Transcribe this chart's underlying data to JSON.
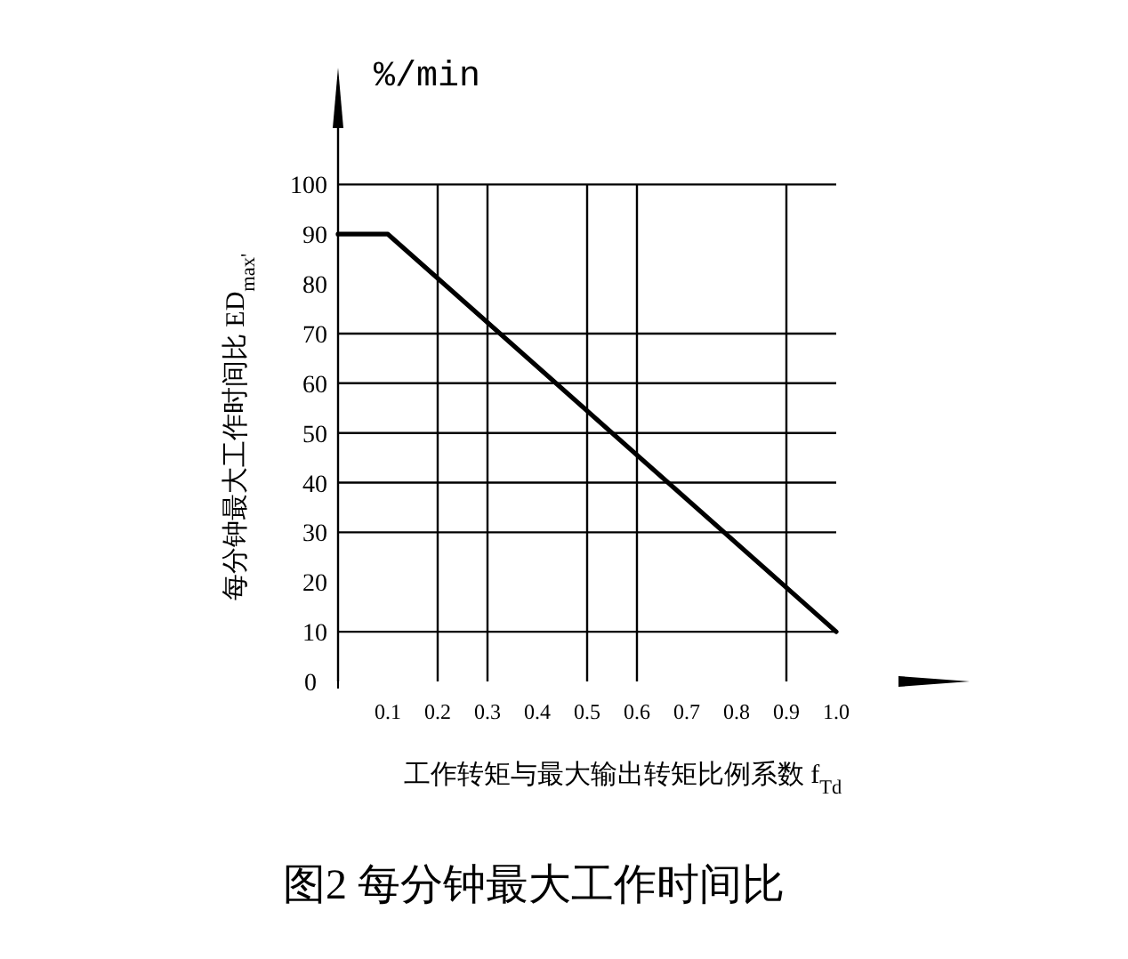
{
  "chart_data": {
    "type": "line",
    "title": "图2 每分钟最大工作时间比",
    "xlabel": "工作转矩与最大输出转矩比例系数 f$_{Td}$",
    "ylabel": "每分钟最大工作时间比 ED$_{max'}$",
    "annotations": [
      "%/min"
    ],
    "x": [
      0,
      0.1,
      1.0
    ],
    "values": [
      90,
      90,
      10
    ],
    "color": "#000000",
    "xlim": [
      0,
      1
    ],
    "ylim": [
      0,
      118.5
    ],
    "xticks": [
      0.1,
      0.2,
      0.3,
      0.4,
      0.5,
      0.6,
      0.7,
      0.8,
      0.9,
      {
        "value": 1,
        "label": "1.0"
      }
    ],
    "yticks": [
      0,
      10,
      20,
      30,
      40,
      50,
      60,
      70,
      80,
      90,
      100
    ],
    "ref_lines": [
      {
        "axis": "y",
        "value": 100,
        "color": "#000000"
      },
      {
        "axis": "y",
        "value": 70,
        "color": "#000000"
      },
      {
        "axis": "y",
        "value": 60,
        "color": "#000000"
      },
      {
        "axis": "y",
        "value": 50,
        "color": "#000000"
      },
      {
        "axis": "y",
        "value": 40,
        "color": "#000000"
      },
      {
        "axis": "y",
        "value": 30,
        "color": "#000000"
      },
      {
        "axis": "y",
        "value": 10,
        "color": "#000000"
      },
      {
        "axis": "x",
        "value": 0.2,
        "color": "#000000"
      },
      {
        "axis": "x",
        "value": 0.3,
        "color": "#000000"
      },
      {
        "axis": "x",
        "value": 0.5,
        "color": "#000000"
      },
      {
        "axis": "x",
        "value": 0.6,
        "color": "#000000"
      },
      {
        "axis": "x",
        "value": 0.9,
        "color": "#000000"
      }
    ],
    "grid": false
  }
}
